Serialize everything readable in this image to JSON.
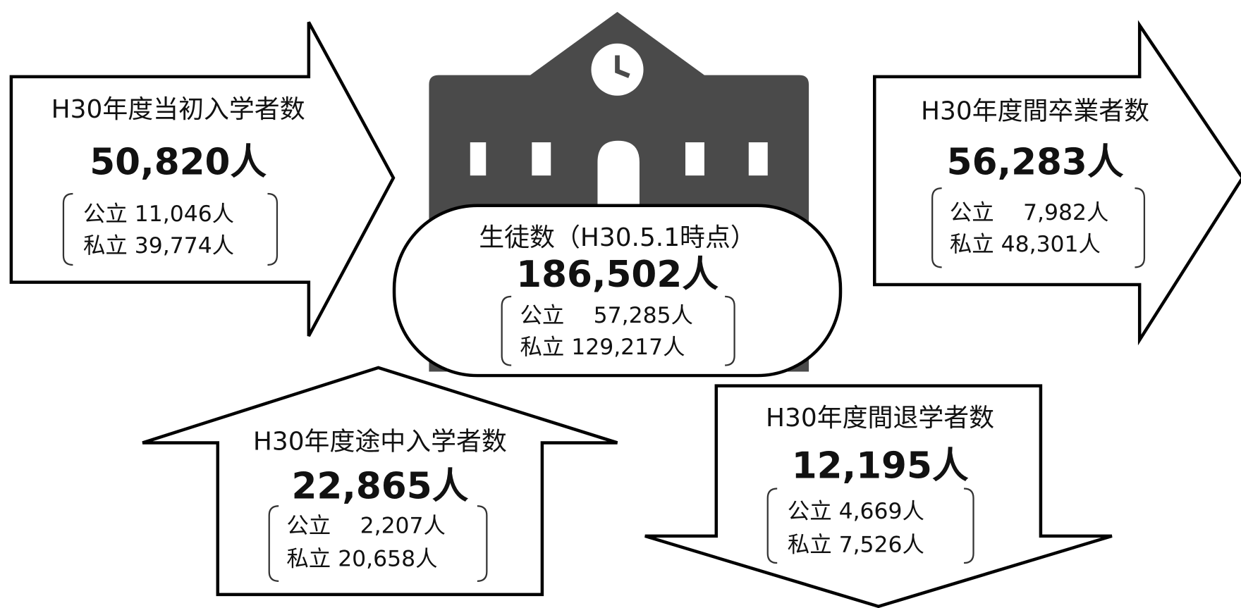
{
  "initial_enrollment": {
    "title": "H30年度当初入学者数",
    "total": "50,820人",
    "public": "公立 11,046人",
    "private": "私立 39,774人"
  },
  "graduates": {
    "title": "H30年度間卒業者数",
    "total": "56,283人",
    "public": "公立　 7,982人",
    "private": "私立 48,301人"
  },
  "students": {
    "title": "生徒数（H30.5.1時点）",
    "total": "186,502人",
    "public": "公立　 57,285人",
    "private": "私立 129,217人"
  },
  "mid_enrollment": {
    "title": "H30年度途中入学者数",
    "total": "22,865人",
    "public": "公立　 2,207人",
    "private": "私立 20,658人"
  },
  "withdrawals": {
    "title": "H30年度間退学者数",
    "total": "12,195人",
    "public": "公立 4,669人",
    "private": "私立 7,526人"
  }
}
